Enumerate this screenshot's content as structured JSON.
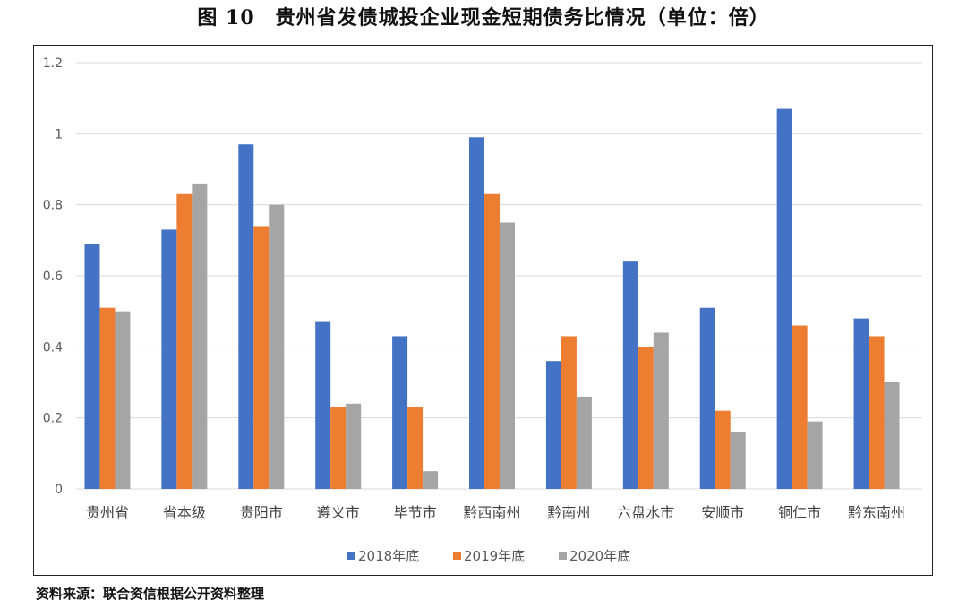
{
  "title": "图 10　贵州省发债城投企业现金短期债务比情况（单位：倍）",
  "source": "资料来源：联合资信根据公开资料整理",
  "chart_data": {
    "type": "bar",
    "title": "图 10　贵州省发债城投企业现金短期债务比情况（单位：倍）",
    "xlabel": "",
    "ylabel": "",
    "ylim": [
      0,
      1.2
    ],
    "yticks": [
      "0",
      "0.2",
      "0.4",
      "0.6",
      "0.8",
      "1",
      "1.2"
    ],
    "grid": true,
    "legend": "bottom",
    "categories": [
      "贵州省",
      "省本级",
      "贵阳市",
      "遵义市",
      "毕节市",
      "黔西南州",
      "黔南州",
      "六盘水市",
      "安顺市",
      "铜仁市",
      "黔东南州"
    ],
    "series": [
      {
        "name": "2018年底",
        "color": "#4472C4",
        "values": [
          0.69,
          0.73,
          0.97,
          0.47,
          0.43,
          0.99,
          0.36,
          0.64,
          0.51,
          1.07,
          0.48
        ]
      },
      {
        "name": "2019年底",
        "color": "#ED7D31",
        "values": [
          0.51,
          0.83,
          0.74,
          0.23,
          0.23,
          0.83,
          0.43,
          0.4,
          0.22,
          0.46,
          0.43
        ]
      },
      {
        "name": "2020年底",
        "color": "#A5A5A5",
        "values": [
          0.5,
          0.86,
          0.8,
          0.24,
          0.05,
          0.75,
          0.26,
          0.44,
          0.16,
          0.19,
          0.3
        ]
      }
    ]
  }
}
